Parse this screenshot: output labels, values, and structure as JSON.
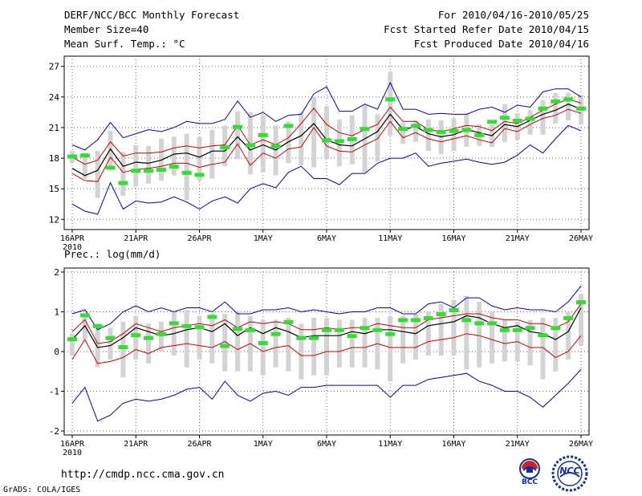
{
  "header": {
    "left": [
      "DERF/NCC/BCC Monthly Forecast",
      "Member Size=40",
      "Mean Surf. Temp.: °C"
    ],
    "right": [
      "For 2010/04/16-2010/05/25",
      "Fcst Started Refer Date 2010/04/15",
      "Fcst Produced Date 2010/04/16"
    ]
  },
  "footer": {
    "url": "http://cmdp.ncc.cma.gov.cn",
    "credit": "GrADS: COLA/IGES",
    "logo_left": "BCC",
    "logo_right": "NCC"
  },
  "colors": {
    "envelope": "#0000cc",
    "spread": "#cc0000",
    "mean": "#000000",
    "observed": "#33dd33",
    "box": "#d3d3d3",
    "grid": "#666666"
  },
  "chart_data": [
    {
      "type": "line",
      "title": "Mean Surf. Temp.: °C",
      "x_ticks": [
        "16APR",
        "21APR",
        "26APR",
        "1MAY",
        "6MAY",
        "11MAY",
        "16MAY",
        "21MAY",
        "26MAY"
      ],
      "x_year": "2010",
      "x_range": [
        0,
        40
      ],
      "y_range": [
        11,
        28
      ],
      "y_ticks": [
        12,
        15,
        18,
        21,
        24,
        27
      ],
      "series": [
        {
          "name": "max",
          "role": "envelope",
          "values": [
            19.3,
            18.8,
            19.8,
            21.5,
            20.0,
            20.4,
            20.8,
            20.6,
            21.0,
            21.6,
            21.4,
            21.4,
            21.8,
            23.6,
            22.0,
            22.5,
            21.6,
            22.2,
            22.3,
            24.3,
            25.0,
            22.6,
            22.6,
            23.3,
            22.8,
            25.4,
            22.8,
            22.8,
            22.3,
            22.4,
            22.3,
            22.3,
            22.8,
            23.0,
            22.5,
            23.2,
            23.0,
            24.5,
            24.8,
            24.8,
            24.0
          ]
        },
        {
          "name": "upper",
          "role": "spread",
          "values": [
            18.1,
            17.4,
            17.8,
            19.6,
            18.2,
            18.5,
            18.5,
            18.6,
            19.0,
            19.2,
            19.0,
            19.2,
            19.3,
            21.2,
            19.3,
            19.8,
            19.3,
            20.0,
            21.4,
            22.9,
            21.3,
            20.5,
            20.2,
            20.8,
            21.3,
            23.0,
            21.6,
            21.6,
            20.8,
            20.6,
            20.9,
            21.2,
            21.1,
            20.7,
            21.6,
            21.4,
            22.0,
            22.7,
            23.3,
            23.8,
            23.4
          ]
        },
        {
          "name": "mean",
          "role": "mean",
          "values": [
            17.0,
            16.3,
            16.8,
            18.9,
            17.2,
            17.6,
            17.5,
            17.8,
            18.4,
            18.5,
            18.1,
            18.7,
            18.7,
            20.1,
            18.8,
            19.3,
            18.8,
            19.6,
            20.2,
            21.4,
            19.8,
            19.3,
            19.2,
            19.9,
            20.6,
            22.3,
            20.8,
            21.1,
            20.4,
            20.1,
            20.3,
            20.8,
            20.5,
            20.2,
            21.3,
            21.1,
            21.7,
            22.3,
            22.7,
            23.3,
            22.8
          ]
        },
        {
          "name": "lower",
          "role": "spread",
          "values": [
            16.5,
            15.8,
            15.7,
            18.1,
            16.6,
            16.9,
            17.0,
            17.2,
            17.5,
            17.5,
            17.1,
            17.4,
            17.6,
            19.4,
            17.3,
            18.5,
            18.0,
            18.9,
            19.1,
            21.0,
            19.2,
            18.7,
            18.6,
            19.3,
            19.9,
            21.6,
            20.0,
            20.5,
            19.9,
            19.6,
            19.9,
            20.2,
            19.8,
            19.5,
            20.9,
            20.6,
            21.3,
            21.9,
            22.2,
            22.8,
            22.4
          ]
        },
        {
          "name": "min",
          "role": "envelope",
          "values": [
            13.5,
            12.8,
            12.5,
            15.6,
            13.0,
            13.8,
            13.6,
            13.7,
            14.2,
            13.7,
            13.0,
            13.8,
            14.2,
            13.6,
            15.0,
            15.5,
            15.1,
            16.6,
            17.2,
            16.0,
            16.0,
            15.4,
            16.5,
            16.5,
            17.5,
            18.0,
            18.0,
            18.5,
            17.2,
            17.5,
            17.7,
            17.9,
            17.6,
            17.4,
            17.6,
            18.3,
            19.3,
            18.5,
            19.9,
            21.2,
            20.7
          ]
        },
        {
          "name": "observed",
          "role": "observed",
          "values": [
            18.2,
            18.3,
            null,
            17.1,
            15.6,
            16.8,
            16.8,
            16.9,
            17.2,
            16.6,
            16.4,
            null,
            19.1,
            21.1,
            19.3,
            20.3,
            19.2,
            21.2,
            null,
            null,
            19.8,
            19.7,
            19.9,
            20.9,
            null,
            23.8,
            20.9,
            21.2,
            20.8,
            20.6,
            20.7,
            20.8,
            20.3,
            21.6,
            22.0,
            21.7,
            21.9,
            22.9,
            23.6,
            23.8,
            22.9
          ]
        },
        {
          "name": "box_high",
          "role": "box",
          "values": [
            18.7,
            18.5,
            18.7,
            20.7,
            18.6,
            19.3,
            19.2,
            19.9,
            20.1,
            20.4,
            20.1,
            20.8,
            21.2,
            22.6,
            22.5,
            22.2,
            21.2,
            21.6,
            22.5,
            24.0,
            23.1,
            21.8,
            22.2,
            23.2,
            22.3,
            26.5,
            21.5,
            21.7,
            21.8,
            21.7,
            21.9,
            22.4,
            21.3,
            21.3,
            23.3,
            22.4,
            22.7,
            23.7,
            24.4,
            24.4,
            24.2
          ]
        },
        {
          "name": "box_low",
          "role": "box",
          "values": [
            17.5,
            16.0,
            14.1,
            17.0,
            14.3,
            15.2,
            15.5,
            15.8,
            16.3,
            13.9,
            15.8,
            16.0,
            17.2,
            17.9,
            16.4,
            16.6,
            16.3,
            17.5,
            17.3,
            17.1,
            17.9,
            17.2,
            17.4,
            16.6,
            17.7,
            20.2,
            19.4,
            19.6,
            18.7,
            18.4,
            18.7,
            19.1,
            19.2,
            19.1,
            19.6,
            19.8,
            20.3,
            20.3,
            21.4,
            21.7,
            21.3
          ]
        }
      ]
    },
    {
      "type": "line",
      "title": "Prec.: log(mm/d)",
      "x_ticks": [
        "16APR",
        "21APR",
        "26APR",
        "1MAY",
        "6MAY",
        "11MAY",
        "16MAY",
        "21MAY",
        "26MAY"
      ],
      "x_year": "2010",
      "x_range": [
        0,
        40
      ],
      "y_range": [
        -2.1,
        2.1
      ],
      "y_ticks": [
        -2,
        -1,
        0,
        1,
        2
      ],
      "series": [
        {
          "name": "max",
          "role": "envelope",
          "values": [
            0.95,
            1.05,
            0.55,
            0.7,
            1.0,
            1.15,
            1.0,
            1.1,
            1.0,
            1.1,
            1.1,
            1.0,
            1.25,
            0.95,
            0.95,
            1.05,
            1.05,
            1.1,
            1.0,
            1.05,
            1.0,
            0.95,
            1.0,
            1.0,
            1.1,
            1.1,
            0.95,
            0.95,
            1.2,
            1.25,
            1.1,
            1.35,
            1.35,
            1.15,
            1.05,
            1.1,
            1.05,
            1.05,
            1.0,
            1.25,
            1.65
          ]
        },
        {
          "name": "upper",
          "role": "spread",
          "values": [
            0.5,
            0.8,
            0.2,
            0.25,
            0.45,
            0.7,
            0.6,
            0.5,
            0.6,
            0.65,
            0.7,
            0.65,
            0.8,
            0.6,
            0.75,
            0.7,
            0.75,
            0.7,
            0.55,
            0.55,
            0.6,
            0.55,
            0.6,
            0.6,
            0.7,
            0.65,
            0.6,
            0.6,
            0.8,
            0.85,
            0.9,
            0.95,
            0.95,
            0.85,
            0.8,
            0.8,
            0.7,
            0.7,
            0.6,
            0.75,
            1.2
          ]
        },
        {
          "name": "mean",
          "role": "mean",
          "values": [
            0.3,
            0.65,
            0.1,
            0.15,
            0.35,
            0.6,
            0.5,
            0.4,
            0.45,
            0.55,
            0.6,
            0.5,
            0.7,
            0.4,
            0.6,
            0.45,
            0.6,
            0.5,
            0.35,
            0.4,
            0.4,
            0.4,
            0.5,
            0.45,
            0.55,
            0.55,
            0.5,
            0.45,
            0.65,
            0.7,
            0.75,
            0.9,
            0.85,
            0.7,
            0.6,
            0.65,
            0.5,
            0.45,
            0.3,
            0.5,
            1.1
          ]
        },
        {
          "name": "lower",
          "role": "spread",
          "values": [
            -0.2,
            0.3,
            -0.3,
            -0.25,
            -0.15,
            0.05,
            -0.05,
            0.1,
            0.15,
            0.2,
            0.15,
            0.1,
            0.25,
            0.05,
            0.2,
            0.0,
            0.1,
            0.15,
            -0.1,
            -0.1,
            0.0,
            0.0,
            0.1,
            0.1,
            0.2,
            0.1,
            0.1,
            0.1,
            0.25,
            0.3,
            0.35,
            0.45,
            0.4,
            0.3,
            0.2,
            0.25,
            0.1,
            0.1,
            -0.15,
            0.0,
            0.4
          ]
        },
        {
          "name": "min",
          "role": "envelope",
          "values": [
            -1.3,
            -0.9,
            -1.75,
            -1.6,
            -1.3,
            -1.2,
            -1.25,
            -1.2,
            -1.1,
            -0.95,
            -0.9,
            -1.2,
            -0.75,
            -1.1,
            -1.25,
            -1.05,
            -1.0,
            -1.1,
            -0.9,
            -0.9,
            -0.85,
            -0.85,
            -0.85,
            -0.85,
            -0.85,
            -1.15,
            -0.85,
            -0.85,
            -0.7,
            -0.65,
            -0.6,
            -0.55,
            -0.75,
            -0.85,
            -1.0,
            -1.0,
            -1.15,
            -1.4,
            -1.1,
            -0.8,
            -0.45
          ]
        },
        {
          "name": "observed",
          "role": "observed",
          "values": [
            0.32,
            0.92,
            0.65,
            0.35,
            0.12,
            0.42,
            0.35,
            0.45,
            0.72,
            0.65,
            0.62,
            0.88,
            0.15,
            0.58,
            0.55,
            0.22,
            0.45,
            0.75,
            0.35,
            0.35,
            0.55,
            0.55,
            0.4,
            0.6,
            0.55,
            0.45,
            0.8,
            0.8,
            0.85,
            0.95,
            1.05,
            0.8,
            0.72,
            0.72,
            0.55,
            0.55,
            0.6,
            0.42,
            0.6,
            0.85,
            1.25
          ]
        },
        {
          "name": "box_high",
          "role": "box",
          "values": [
            0.45,
            0.9,
            0.7,
            0.6,
            0.75,
            0.9,
            0.7,
            0.75,
            1.0,
            1.05,
            0.9,
            0.95,
            0.95,
            1.0,
            0.9,
            0.8,
            0.8,
            0.85,
            0.7,
            0.85,
            0.85,
            0.8,
            0.8,
            0.85,
            0.85,
            0.9,
            0.9,
            0.95,
            1.0,
            1.2,
            1.3,
            1.4,
            1.25,
            1.0,
            0.8,
            0.75,
            0.8,
            0.85,
            0.85,
            1.0,
            1.45
          ]
        },
        {
          "name": "box_low",
          "role": "box",
          "values": [
            -0.1,
            0.3,
            -0.4,
            -0.2,
            -0.65,
            -0.2,
            -0.3,
            0.0,
            -0.1,
            -0.4,
            -0.2,
            -0.3,
            -0.5,
            -0.5,
            -0.5,
            -0.6,
            -0.4,
            -0.5,
            -0.7,
            -0.6,
            -0.6,
            -0.4,
            -0.4,
            -0.4,
            -0.45,
            -0.75,
            -0.3,
            -0.2,
            -0.1,
            -0.1,
            -0.1,
            -0.45,
            -0.4,
            -0.3,
            -0.25,
            -0.25,
            -0.35,
            -0.7,
            -0.5,
            -0.2,
            0.15
          ]
        }
      ]
    }
  ]
}
